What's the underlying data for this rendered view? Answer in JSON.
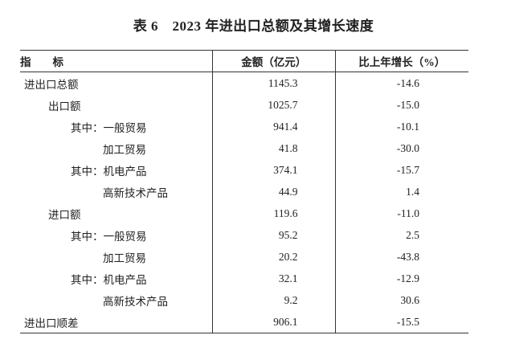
{
  "title": "表 6　2023 年进出口总额及其增长速度",
  "table": {
    "header": [
      "指　　标",
      "金额（亿元）",
      "比上年增长（%）"
    ],
    "rows": [
      [
        "进出口总额",
        "1145.3",
        "-14.6"
      ],
      [
        "出口额",
        "1025.7",
        "-15.0"
      ],
      [
        "其中：一般贸易",
        "941.4",
        "-10.1"
      ],
      [
        "加工贸易",
        "41.8",
        "-30.0"
      ],
      [
        "其中：机电产品",
        "374.1",
        "-15.7"
      ],
      [
        "高新技术产品",
        "44.9",
        "1.4"
      ],
      [
        "进口额",
        "119.6",
        "-11.0"
      ],
      [
        "其中：一般贸易",
        "95.2",
        "2.5"
      ],
      [
        "加工贸易",
        "20.2",
        "-43.8"
      ],
      [
        "其中：机电产品",
        "32.1",
        "-12.9"
      ],
      [
        "高新技术产品",
        "9.2",
        "30.6"
      ],
      [
        "进出口顺差",
        "906.1",
        "-15.5"
      ]
    ]
  }
}
